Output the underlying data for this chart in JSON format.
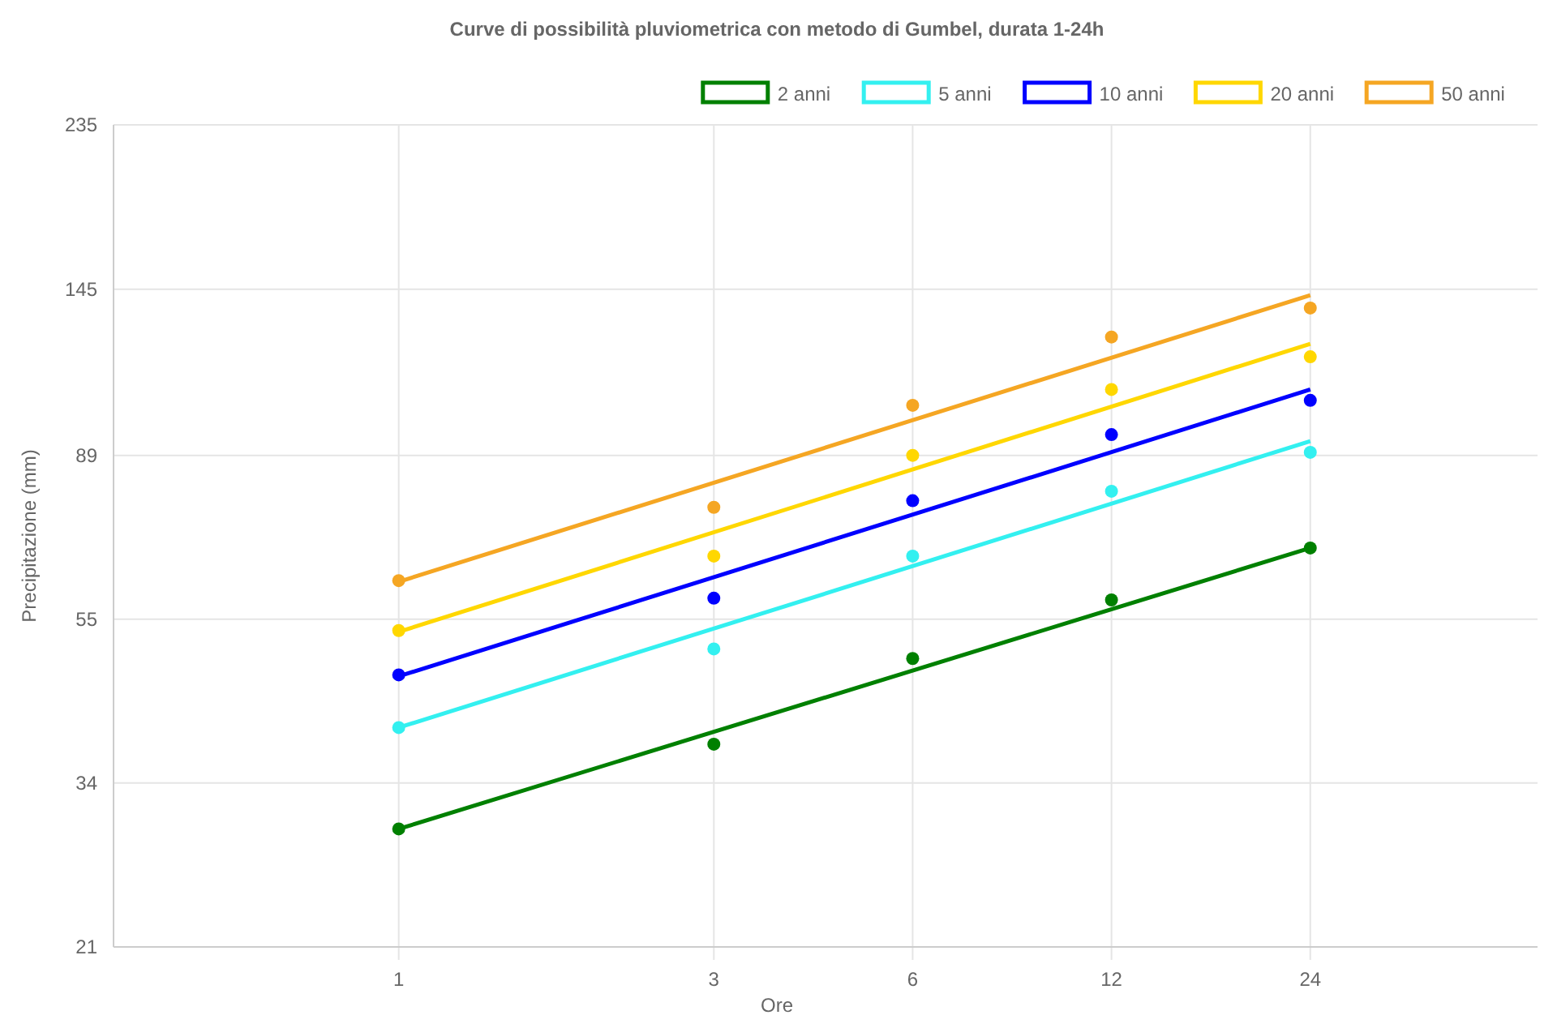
{
  "chart_data": {
    "type": "line",
    "title": "Curve di possibilità pluviometrica con metodo di Gumbel, durata 1-24h",
    "xlabel": "Ore",
    "ylabel": "Precipitazione (mm)",
    "log": "xy",
    "grid": true,
    "legend": "top right",
    "xlim": [
      0.37,
      53
    ],
    "xticks": [
      1,
      3,
      6,
      12,
      24
    ],
    "ylim": [
      21,
      235
    ],
    "yticks": [
      21,
      34,
      55,
      89,
      145,
      235
    ],
    "series": [
      {
        "name": "2 anni",
        "color": "#008000",
        "x": [
          1,
          24
        ],
        "values": [
          29.7,
          67.8
        ]
      },
      {
        "name": "5 anni",
        "color": "#33f0f0",
        "x": [
          1,
          24
        ],
        "values": [
          40,
          92.8
        ]
      },
      {
        "name": "10 anni",
        "color": "#0000ff",
        "x": [
          1,
          24
        ],
        "values": [
          46.5,
          108
        ]
      },
      {
        "name": "20 anni",
        "color": "#ffd700",
        "x": [
          1,
          24
        ],
        "values": [
          53,
          123.5
        ]
      },
      {
        "name": "50 anni",
        "color": "#f5a623",
        "x": [
          1,
          24
        ],
        "values": [
          61.4,
          142.5
        ]
      },
      {
        "type": "scatter",
        "color": "#008000",
        "x": [
          1,
          3,
          6,
          12,
          24
        ],
        "values": [
          29.7,
          38.1,
          49,
          58.2,
          67.8
        ]
      },
      {
        "type": "scatter",
        "color": "#33f0f0",
        "x": [
          1,
          3,
          6,
          12,
          24
        ],
        "values": [
          40,
          50.4,
          66.2,
          80.1,
          89.8
        ]
      },
      {
        "type": "scatter",
        "color": "#0000ff",
        "x": [
          1,
          3,
          6,
          12,
          24
        ],
        "values": [
          46.7,
          58.5,
          77.9,
          94.6,
          104.6
        ]
      },
      {
        "type": "scatter",
        "color": "#ffd700",
        "x": [
          1,
          3,
          6,
          12,
          24
        ],
        "values": [
          53.2,
          66.2,
          89,
          108,
          118.9
        ]
      },
      {
        "type": "scatter",
        "color": "#f5a623",
        "x": [
          1,
          3,
          6,
          12,
          24
        ],
        "values": [
          61.6,
          76.4,
          103.1,
          126,
          137.2
        ]
      }
    ]
  }
}
